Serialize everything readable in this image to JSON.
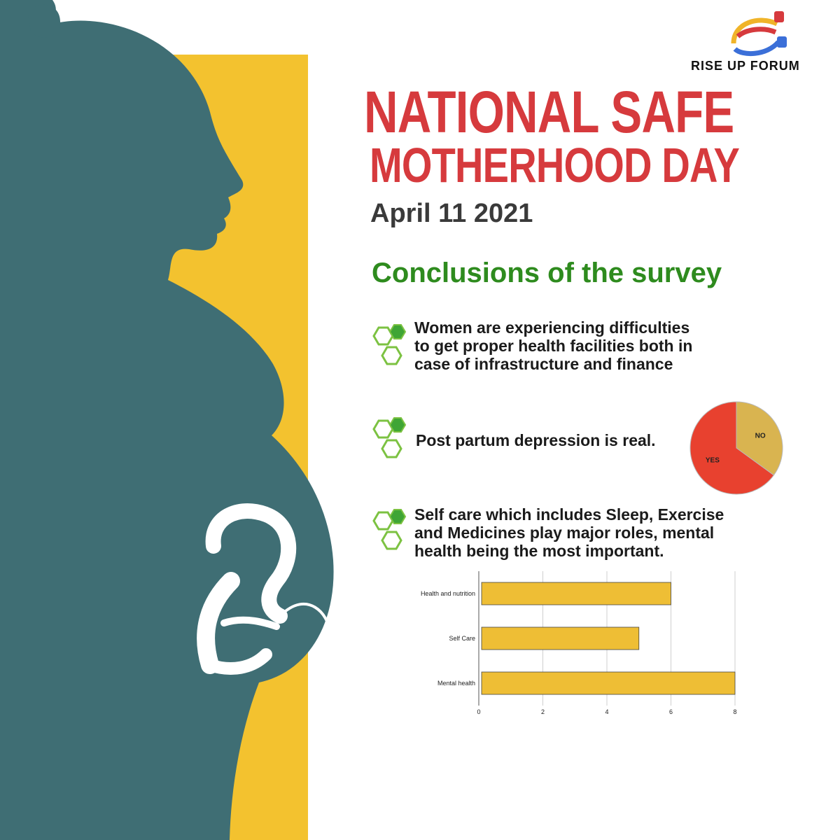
{
  "brand": {
    "name": "RISE UP FORUM",
    "logo_icon": "raised-fists-logo-icon"
  },
  "title": {
    "line1": "NATIONAL SAFE",
    "line2": "MOTHERHOOD DAY"
  },
  "date": "April 11 2021",
  "subtitle": "Conclusions of the survey",
  "bullets": [
    {
      "icon": "hexagon-cluster-icon",
      "lines": [
        "Women are experiencing difficulties",
        "to get proper health facilities both in",
        "case of infrastructure and finance"
      ]
    },
    {
      "icon": "hexagon-cluster-icon",
      "lines": [
        "Post partum depression is real."
      ]
    },
    {
      "icon": "hexagon-cluster-icon",
      "lines": [
        "Self care which includes Sleep, Exercise",
        "and Medicines play major roles, mental",
        "health being the most important."
      ]
    }
  ],
  "colors": {
    "title_red": "#d63a3d",
    "subtitle_green": "#2e8b1e",
    "silhouette": "#3f6e74",
    "yellow": "#f3c22f",
    "pie_yes": "#e8412f",
    "pie_no": "#d9b450",
    "bar": "#eebe35"
  },
  "chart_data": [
    {
      "type": "pie",
      "labels": [
        "YES",
        "NO"
      ],
      "values": [
        0.65,
        0.35
      ],
      "colors": [
        "#e8412f",
        "#d9b450"
      ]
    },
    {
      "type": "bar",
      "orientation": "horizontal",
      "categories": [
        "Health and nutrition",
        "Self Care",
        "Mental health"
      ],
      "values": [
        6,
        5,
        8
      ],
      "xlim": [
        0,
        8
      ],
      "xticks": [
        0,
        2,
        4,
        6,
        8
      ],
      "grid": true
    }
  ]
}
